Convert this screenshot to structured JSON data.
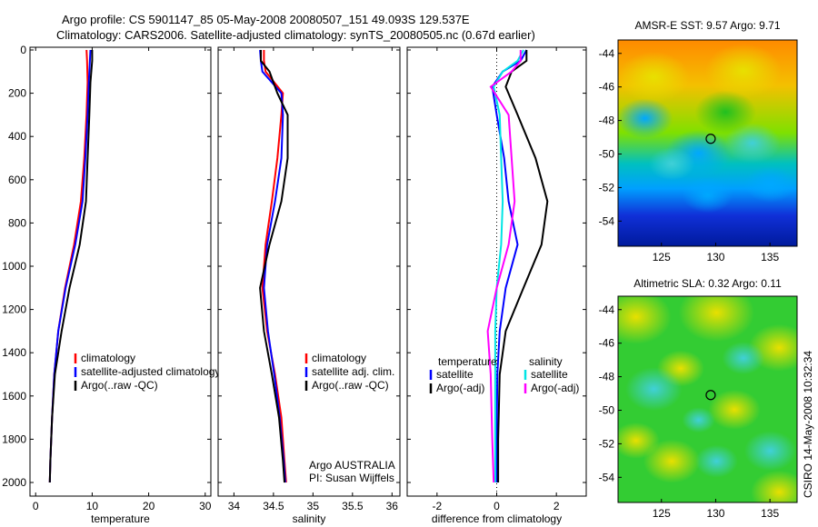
{
  "header": {
    "line1": "Argo profile: CS 5901147_85 05-May-2008 20080507_151 49.093S 129.537E",
    "line2": "Climatology: CARS2006. Satellite-adjusted climatology: synTS_20080505.nc (0.67d earlier)"
  },
  "colors": {
    "climatology": "#ff0000",
    "satellite": "#0000ff",
    "argo": "#000000",
    "salinity_satellite": "#00e5e5",
    "salinity_argo": "#ff00ff"
  },
  "chart_data": [
    {
      "id": "temperature",
      "type": "line",
      "xlabel": "temperature",
      "xlim": [
        -1,
        31
      ],
      "xticks": [
        0,
        10,
        20,
        30
      ],
      "xtick_labels": [
        "0",
        "10",
        "20",
        "30"
      ],
      "ylim": [
        0,
        2050
      ],
      "yticks": [
        0,
        200,
        400,
        600,
        800,
        1000,
        1200,
        1400,
        1600,
        1800,
        2000
      ],
      "ytick_labels": [
        "0",
        "200",
        "400",
        "600",
        "800",
        "1000",
        "1200",
        "1400",
        "1600",
        "1800",
        "2000"
      ],
      "y_reversed": true,
      "legend": [
        "climatology",
        "satellite-adjusted climatology",
        "Argo(..raw -QC)"
      ],
      "series": [
        {
          "name": "climatology",
          "color": "#ff0000",
          "points": [
            [
              9,
              0
            ],
            [
              9.1,
              50
            ],
            [
              9.2,
              150
            ],
            [
              9.0,
              300
            ],
            [
              8.6,
              500
            ],
            [
              8.0,
              700
            ],
            [
              6.8,
              900
            ],
            [
              5.2,
              1100
            ],
            [
              4.0,
              1300
            ],
            [
              3.3,
              1500
            ],
            [
              2.9,
              1700
            ],
            [
              2.6,
              1900
            ],
            [
              2.5,
              2000
            ]
          ]
        },
        {
          "name": "satellite-adjusted climatology",
          "color": "#0000ff",
          "points": [
            [
              9.7,
              0
            ],
            [
              9.6,
              50
            ],
            [
              9.4,
              150
            ],
            [
              9.2,
              300
            ],
            [
              8.8,
              500
            ],
            [
              8.3,
              700
            ],
            [
              7.0,
              900
            ],
            [
              5.3,
              1100
            ],
            [
              4.0,
              1300
            ],
            [
              3.3,
              1500
            ],
            [
              2.9,
              1700
            ],
            [
              2.6,
              1900
            ],
            [
              2.5,
              2000
            ]
          ]
        },
        {
          "name": "Argo(..raw -QC)",
          "color": "#000000",
          "points": [
            [
              10.0,
              0
            ],
            [
              10.0,
              50
            ],
            [
              9.7,
              150
            ],
            [
              9.5,
              300
            ],
            [
              9.2,
              500
            ],
            [
              8.9,
              700
            ],
            [
              7.8,
              900
            ],
            [
              6.0,
              1100
            ],
            [
              4.6,
              1300
            ],
            [
              3.4,
              1500
            ],
            [
              2.9,
              1700
            ],
            [
              2.6,
              1900
            ],
            [
              2.5,
              2000
            ]
          ]
        }
      ]
    },
    {
      "id": "salinity",
      "type": "line",
      "xlabel": "salinity",
      "xlim": [
        33.8,
        36.1
      ],
      "xticks": [
        34,
        34.5,
        35,
        35.5,
        36
      ],
      "xtick_labels": [
        "34",
        "34.5",
        "35",
        "35.5",
        "36"
      ],
      "ylim": [
        0,
        2050
      ],
      "y_reversed": true,
      "legend": [
        "climatology",
        "satellite adj. clim.",
        "Argo(..raw -QC)"
      ],
      "annotation": [
        "Argo AUSTRALIA",
        "PI: Susan Wijffels"
      ],
      "series": [
        {
          "name": "climatology",
          "color": "#ff0000",
          "points": [
            [
              34.38,
              0
            ],
            [
              34.38,
              50
            ],
            [
              34.4,
              100
            ],
            [
              34.62,
              200
            ],
            [
              34.6,
              300
            ],
            [
              34.55,
              500
            ],
            [
              34.48,
              700
            ],
            [
              34.4,
              900
            ],
            [
              34.36,
              1100
            ],
            [
              34.42,
              1300
            ],
            [
              34.52,
              1500
            ],
            [
              34.6,
              1700
            ],
            [
              34.64,
              1900
            ],
            [
              34.66,
              2000
            ]
          ]
        },
        {
          "name": "satellite adj. clim.",
          "color": "#0000ff",
          "points": [
            [
              34.33,
              0
            ],
            [
              34.34,
              50
            ],
            [
              34.36,
              100
            ],
            [
              34.6,
              200
            ],
            [
              34.62,
              300
            ],
            [
              34.6,
              500
            ],
            [
              34.52,
              700
            ],
            [
              34.42,
              900
            ],
            [
              34.38,
              1100
            ],
            [
              34.43,
              1300
            ],
            [
              34.51,
              1500
            ],
            [
              34.58,
              1700
            ],
            [
              34.63,
              1900
            ],
            [
              34.65,
              2000
            ]
          ]
        },
        {
          "name": "Argo(..raw -QC)",
          "color": "#000000",
          "points": [
            [
              34.34,
              0
            ],
            [
              34.34,
              50
            ],
            [
              34.45,
              100
            ],
            [
              34.55,
              200
            ],
            [
              34.68,
              300
            ],
            [
              34.68,
              500
            ],
            [
              34.6,
              700
            ],
            [
              34.45,
              900
            ],
            [
              34.33,
              1100
            ],
            [
              34.38,
              1300
            ],
            [
              34.48,
              1500
            ],
            [
              34.57,
              1700
            ],
            [
              34.62,
              1900
            ],
            [
              34.64,
              2000
            ]
          ]
        }
      ]
    },
    {
      "id": "difference",
      "type": "line",
      "xlabel": "difference from climatology",
      "xlim": [
        -3,
        3
      ],
      "xticks": [
        -2,
        0,
        2
      ],
      "xtick_labels": [
        "-2",
        "0",
        "2"
      ],
      "ylim": [
        0,
        2050
      ],
      "y_reversed": true,
      "legend_columns": [
        {
          "header": "temperature",
          "items": [
            "satellite",
            "Argo(-adj)"
          ]
        },
        {
          "header": "salinity",
          "items": [
            "satellite",
            "Argo(-adj)"
          ]
        }
      ],
      "series": [
        {
          "name": "temperature satellite",
          "color": "#0000ff",
          "points": [
            [
              1.0,
              0
            ],
            [
              0.8,
              50
            ],
            [
              0.2,
              100
            ],
            [
              -0.15,
              170
            ],
            [
              0.0,
              300
            ],
            [
              0.25,
              500
            ],
            [
              0.4,
              700
            ],
            [
              0.7,
              900
            ],
            [
              0.3,
              1100
            ],
            [
              0.1,
              1300
            ],
            [
              0.02,
              1500
            ],
            [
              0.0,
              1800
            ],
            [
              0.0,
              2000
            ]
          ]
        },
        {
          "name": "temperature Argo(-adj)",
          "color": "#000000",
          "points": [
            [
              1.0,
              0
            ],
            [
              1.0,
              50
            ],
            [
              0.5,
              100
            ],
            [
              0.3,
              170
            ],
            [
              0.7,
              300
            ],
            [
              1.3,
              500
            ],
            [
              1.7,
              700
            ],
            [
              1.5,
              900
            ],
            [
              0.9,
              1100
            ],
            [
              0.3,
              1300
            ],
            [
              0.1,
              1500
            ],
            [
              0.05,
              1800
            ],
            [
              0.05,
              2000
            ]
          ]
        },
        {
          "name": "salinity satellite",
          "color": "#00e5e5",
          "points": [
            [
              0.9,
              0
            ],
            [
              0.7,
              50
            ],
            [
              0.2,
              100
            ],
            [
              -0.1,
              170
            ],
            [
              0.1,
              300
            ],
            [
              0.15,
              500
            ],
            [
              0.2,
              700
            ],
            [
              0.15,
              900
            ],
            [
              0.0,
              1100
            ],
            [
              -0.05,
              1300
            ],
            [
              -0.05,
              1500
            ],
            [
              -0.05,
              1800
            ],
            [
              -0.05,
              2000
            ]
          ]
        },
        {
          "name": "salinity Argo(-adj)",
          "color": "#ff00ff",
          "points": [
            [
              0.8,
              0
            ],
            [
              0.8,
              50
            ],
            [
              0.5,
              100
            ],
            [
              -0.2,
              170
            ],
            [
              0.4,
              300
            ],
            [
              0.5,
              500
            ],
            [
              0.6,
              700
            ],
            [
              0.4,
              900
            ],
            [
              0.0,
              1100
            ],
            [
              -0.3,
              1300
            ],
            [
              -0.2,
              1500
            ],
            [
              -0.15,
              1800
            ],
            [
              -0.1,
              2000
            ]
          ]
        }
      ]
    },
    {
      "id": "sst_map",
      "type": "heatmap",
      "title": "AMSR-E SST: 9.57  Argo: 9.71",
      "xlim": [
        121,
        137.5
      ],
      "ylim": [
        -55.5,
        -43.2
      ],
      "xticks": [
        125,
        130,
        135
      ],
      "xtick_labels": [
        "125",
        "130",
        "135"
      ],
      "yticks": [
        -44,
        -46,
        -48,
        -50,
        -52,
        -54
      ],
      "ytick_labels": [
        "-44",
        "-46",
        "-48",
        "-50",
        "-52",
        "-54"
      ],
      "marker": {
        "lon": 129.537,
        "lat": -49.093
      }
    },
    {
      "id": "sla_map",
      "type": "heatmap",
      "title": "Altimetric SLA: 0.32  Argo: 0.11",
      "xlim": [
        121,
        137.5
      ],
      "ylim": [
        -55.5,
        -43.2
      ],
      "xticks": [
        125,
        130,
        135
      ],
      "xtick_labels": [
        "125",
        "130",
        "135"
      ],
      "yticks": [
        -44,
        -46,
        -48,
        -50,
        -52,
        -54
      ],
      "ytick_labels": [
        "-44",
        "-46",
        "-48",
        "-50",
        "-52",
        "-54"
      ],
      "marker": {
        "lon": 129.537,
        "lat": -49.093
      }
    }
  ],
  "footer_stamp": "CSIRO 14-May-2008 10:32:34"
}
